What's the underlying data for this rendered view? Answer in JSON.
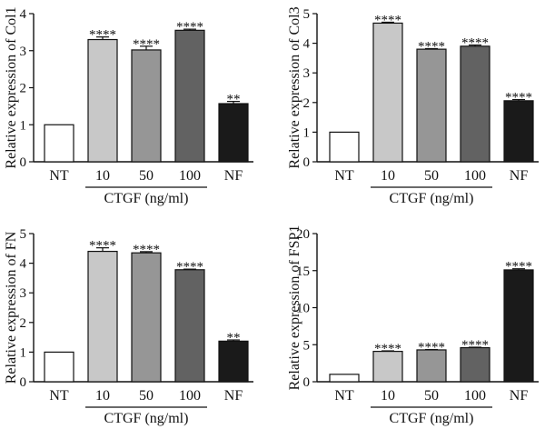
{
  "chart_data": [
    {
      "type": "bar",
      "ylabel": "Relative expression of Col1",
      "categories": [
        "NT",
        "10",
        "50",
        "100",
        "NF"
      ],
      "values": [
        1.0,
        3.3,
        3.02,
        3.55,
        1.57
      ],
      "errors": [
        0.0,
        0.07,
        0.1,
        0.03,
        0.06
      ],
      "significance": [
        "",
        "****",
        "****",
        "****",
        "**"
      ],
      "yticks": [
        0,
        1,
        2,
        3,
        4
      ],
      "ylim": [
        0,
        4
      ],
      "group_label": "CTGF (ng/ml)",
      "group_span": [
        "10",
        "100"
      ],
      "bar_colors": [
        "#ffffff",
        "#c8c8c8",
        "#969696",
        "#626262",
        "#1a1a1a"
      ]
    },
    {
      "type": "bar",
      "ylabel": "Relative expression of Col3",
      "categories": [
        "NT",
        "10",
        "50",
        "100",
        "NF"
      ],
      "values": [
        1.0,
        4.68,
        3.8,
        3.9,
        2.06
      ],
      "errors": [
        0.0,
        0.03,
        0.02,
        0.04,
        0.04
      ],
      "significance": [
        "",
        "****",
        "****",
        "****",
        "****"
      ],
      "yticks": [
        0,
        1,
        2,
        3,
        4,
        5
      ],
      "ylim": [
        0,
        5
      ],
      "group_label": "CTGF (ng/ml)",
      "group_span": [
        "10",
        "100"
      ],
      "bar_colors": [
        "#ffffff",
        "#c8c8c8",
        "#969696",
        "#626262",
        "#1a1a1a"
      ]
    },
    {
      "type": "bar",
      "ylabel": "Relative expression of FN",
      "categories": [
        "NT",
        "10",
        "50",
        "100",
        "NF"
      ],
      "values": [
        1.0,
        4.4,
        4.35,
        3.78,
        1.37
      ],
      "errors": [
        0.0,
        0.12,
        0.04,
        0.02,
        0.04
      ],
      "significance": [
        "",
        "****",
        "****",
        "****",
        "**"
      ],
      "yticks": [
        0,
        1,
        2,
        3,
        4,
        5
      ],
      "ylim": [
        0,
        5
      ],
      "group_label": "CTGF (ng/ml)",
      "group_span": [
        "10",
        "100"
      ],
      "bar_colors": [
        "#ffffff",
        "#c8c8c8",
        "#969696",
        "#626262",
        "#1a1a1a"
      ]
    },
    {
      "type": "bar",
      "ylabel": "Relative expression of FSP1",
      "categories": [
        "NT",
        "10",
        "50",
        "100",
        "NF"
      ],
      "values": [
        1.0,
        4.1,
        4.3,
        4.6,
        15.1
      ],
      "errors": [
        0.0,
        0.07,
        0.05,
        0.06,
        0.15
      ],
      "significance": [
        "",
        "****",
        "****",
        "****",
        "****"
      ],
      "yticks": [
        0,
        5,
        10,
        15,
        20
      ],
      "ylim": [
        0,
        20
      ],
      "group_label": "CTGF (ng/ml)",
      "group_span": [
        "10",
        "100"
      ],
      "bar_colors": [
        "#ffffff",
        "#c8c8c8",
        "#969696",
        "#626262",
        "#1a1a1a"
      ]
    }
  ]
}
